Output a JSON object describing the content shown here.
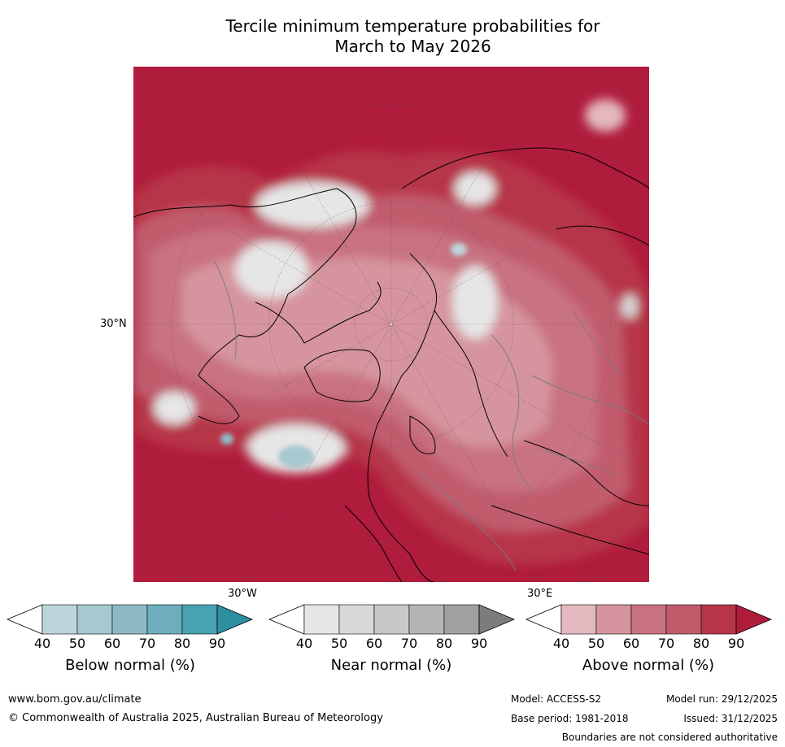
{
  "title": {
    "line1": "Tercile minimum temperature probabilities for",
    "line2": "March to May 2026"
  },
  "map": {
    "projection": "north-polar-stereographic",
    "lat_labels": [
      "30°N"
    ],
    "lon_labels": [
      "30°W",
      "30°E"
    ]
  },
  "colorbars": [
    {
      "label": "Below normal (%)",
      "ticks": [
        "40",
        "50",
        "60",
        "70",
        "80",
        "90"
      ],
      "colors": [
        "#ffffff",
        "#bcd5db",
        "#a6c8cf",
        "#8ebac4",
        "#6eaebc",
        "#47a3b2",
        "#2e8ea2"
      ]
    },
    {
      "label": "Near normal (%)",
      "ticks": [
        "40",
        "50",
        "60",
        "70",
        "80",
        "90"
      ],
      "colors": [
        "#ffffff",
        "#e6e6e6",
        "#d8d8d8",
        "#c8c8c8",
        "#b5b5b5",
        "#a0a0a0",
        "#7c7c7c"
      ]
    },
    {
      "label": "Above normal (%)",
      "ticks": [
        "40",
        "50",
        "60",
        "70",
        "80",
        "90"
      ],
      "colors": [
        "#ffffff",
        "#e3b8be",
        "#d6949e",
        "#c97281",
        "#c15c6d",
        "#b73549",
        "#b01c3c"
      ]
    }
  ],
  "footer": {
    "url": "www.bom.gov.au/climate",
    "copyright": "© Commonwealth of Australia 2025, Australian Bureau of Meteorology",
    "model": "Model: ACCESS-S2",
    "base_period": "Base period: 1981-2018",
    "model_run": "Model run: 29/12/2025",
    "issued": "Issued: 31/12/2025",
    "boundaries_note": "Boundaries are not considered authoritative"
  }
}
